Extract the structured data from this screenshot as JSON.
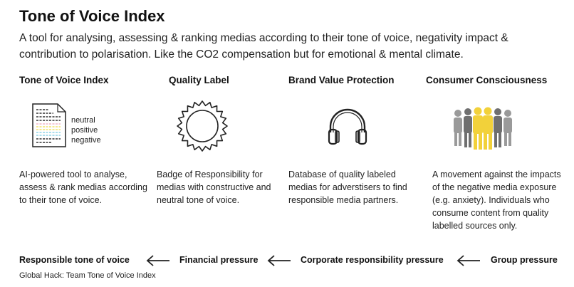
{
  "header": {
    "title": "Tone of Voice Index",
    "subtitle": "A tool for analysing, assessing & ranking medias according to their tone of voice, negativity impact & contribution to polarisation. Like the CO2 compensation but for emotional & mental climate."
  },
  "columns": [
    {
      "heading": "Tone of Voice Index",
      "icon": "document-lines-icon",
      "legend": [
        "neutral",
        "positive",
        "negative"
      ],
      "description": "AI-powered tool to analyse, assess & rank medias according to their tone of voice."
    },
    {
      "heading": "Quality Label",
      "icon": "badge-seal-icon",
      "description": "Badge of Responsibility for medias with constructive and neutral tone of voice."
    },
    {
      "heading": "Brand Value Protection",
      "icon": "headphones-icon",
      "description": "Database of quality labeled medias for adverstisers to find responsible media partners."
    },
    {
      "heading": "Consumer Consciousness",
      "icon": "crowd-people-icon",
      "description": "A movement against the impacts of the negative media exposure (e.g. anxiety). Individuals who consume content from quality labelled sources only."
    }
  ],
  "flow": {
    "steps": [
      "Responsible tone of voice",
      "Financial pressure",
      "Corporate responsibility pressure",
      "Group pressure"
    ],
    "arrow_icon": "arrow-left-icon"
  },
  "footer": "Global Hack: Team Tone of Voice Index",
  "colors": {
    "text": "#1a1a1a",
    "neutral_line": "#f2b6c6",
    "positive_line": "#f3e36b",
    "negative_line": "#8fd3e6",
    "people_yellow": "#f2d13a",
    "people_gray": "#8a8a8a"
  }
}
